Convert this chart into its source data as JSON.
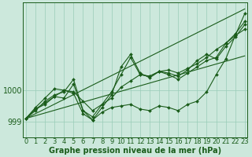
{
  "background_color": "#cce8dc",
  "grid_color": "#99ccb8",
  "line_color": "#1a5c1a",
  "text_color": "#1a5c1a",
  "xlabel": "Graphe pression niveau de la mer (hPa)",
  "ylim": [
    998.5,
    1002.8
  ],
  "yticks": [
    999,
    1000
  ],
  "xticks": [
    0,
    1,
    2,
    3,
    4,
    5,
    6,
    7,
    8,
    9,
    10,
    11,
    12,
    13,
    14,
    15,
    16,
    17,
    18,
    19,
    20,
    21,
    22,
    23
  ],
  "series": [
    [
      999.1,
      999.4,
      999.55,
      999.8,
      1000.0,
      999.95,
      999.65,
      999.35,
      999.55,
      999.75,
      1000.1,
      1000.3,
      1000.5,
      1000.45,
      1000.6,
      1000.65,
      1000.55,
      1000.7,
      1000.85,
      1001.05,
      1001.3,
      1001.5,
      1001.75,
      1001.95
    ],
    [
      999.1,
      999.45,
      999.75,
      1000.05,
      1000.0,
      999.9,
      999.25,
      999.05,
      999.45,
      999.85,
      1000.75,
      1001.15,
      1000.55,
      1000.4,
      1000.6,
      1000.5,
      1000.35,
      1000.55,
      1000.75,
      1000.95,
      1001.05,
      1001.5,
      1001.8,
      1002.2
    ],
    [
      999.1,
      999.35,
      999.65,
      999.85,
      999.95,
      1000.35,
      999.35,
      999.15,
      999.55,
      999.95,
      1000.5,
      1001.05,
      1000.5,
      1000.45,
      1000.6,
      1000.55,
      1000.45,
      1000.65,
      1000.95,
      1001.15,
      1001.0,
      1001.4,
      1001.7,
      1002.1
    ],
    [
      999.1,
      999.4,
      999.6,
      999.8,
      999.75,
      1000.2,
      999.35,
      999.05,
      999.3,
      999.45,
      999.5,
      999.55,
      999.4,
      999.35,
      999.5,
      999.45,
      999.35,
      999.55,
      999.65,
      999.95,
      1000.5,
      1001.0,
      1001.75,
      1002.45
    ]
  ],
  "upper_trend": [
    999.1,
    1002.6
  ],
  "lower_trend": [
    999.1,
    1001.1
  ],
  "fontsize_label": 7,
  "fontsize_tick": 6,
  "marker": "D",
  "markersize": 2.0,
  "linewidth": 0.8
}
